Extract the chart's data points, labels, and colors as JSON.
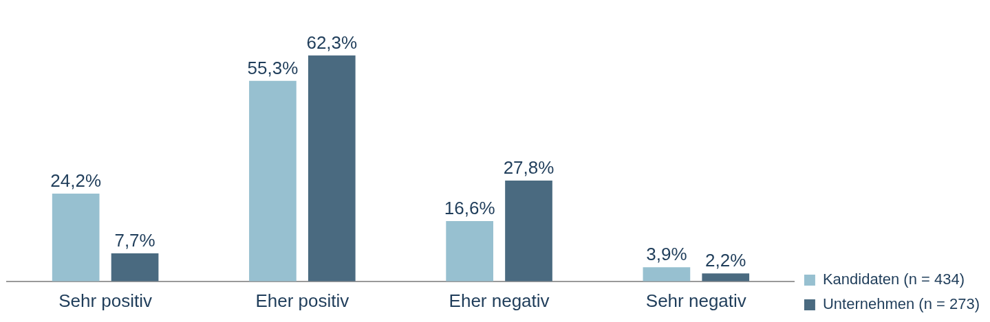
{
  "chart_data": {
    "type": "bar",
    "categories": [
      "Sehr positiv",
      "Eher positiv",
      "Eher negativ",
      "Sehr negativ"
    ],
    "series": [
      {
        "name": "Kandidaten (n = 434)",
        "color": "#97c0d0",
        "values": [
          24.2,
          55.3,
          16.6,
          3.9
        ],
        "value_labels": [
          "24,2%",
          "55,3%",
          "16,6%",
          "3,9%"
        ]
      },
      {
        "name": "Unternehmen (n = 273)",
        "color": "#4a6a80",
        "values": [
          7.7,
          62.3,
          27.8,
          2.2
        ],
        "value_labels": [
          "7,7%",
          "62,3%",
          "27,8%",
          "2,2%"
        ]
      }
    ],
    "grid": false,
    "legend": "bottom right",
    "tick_labels": "x"
  }
}
